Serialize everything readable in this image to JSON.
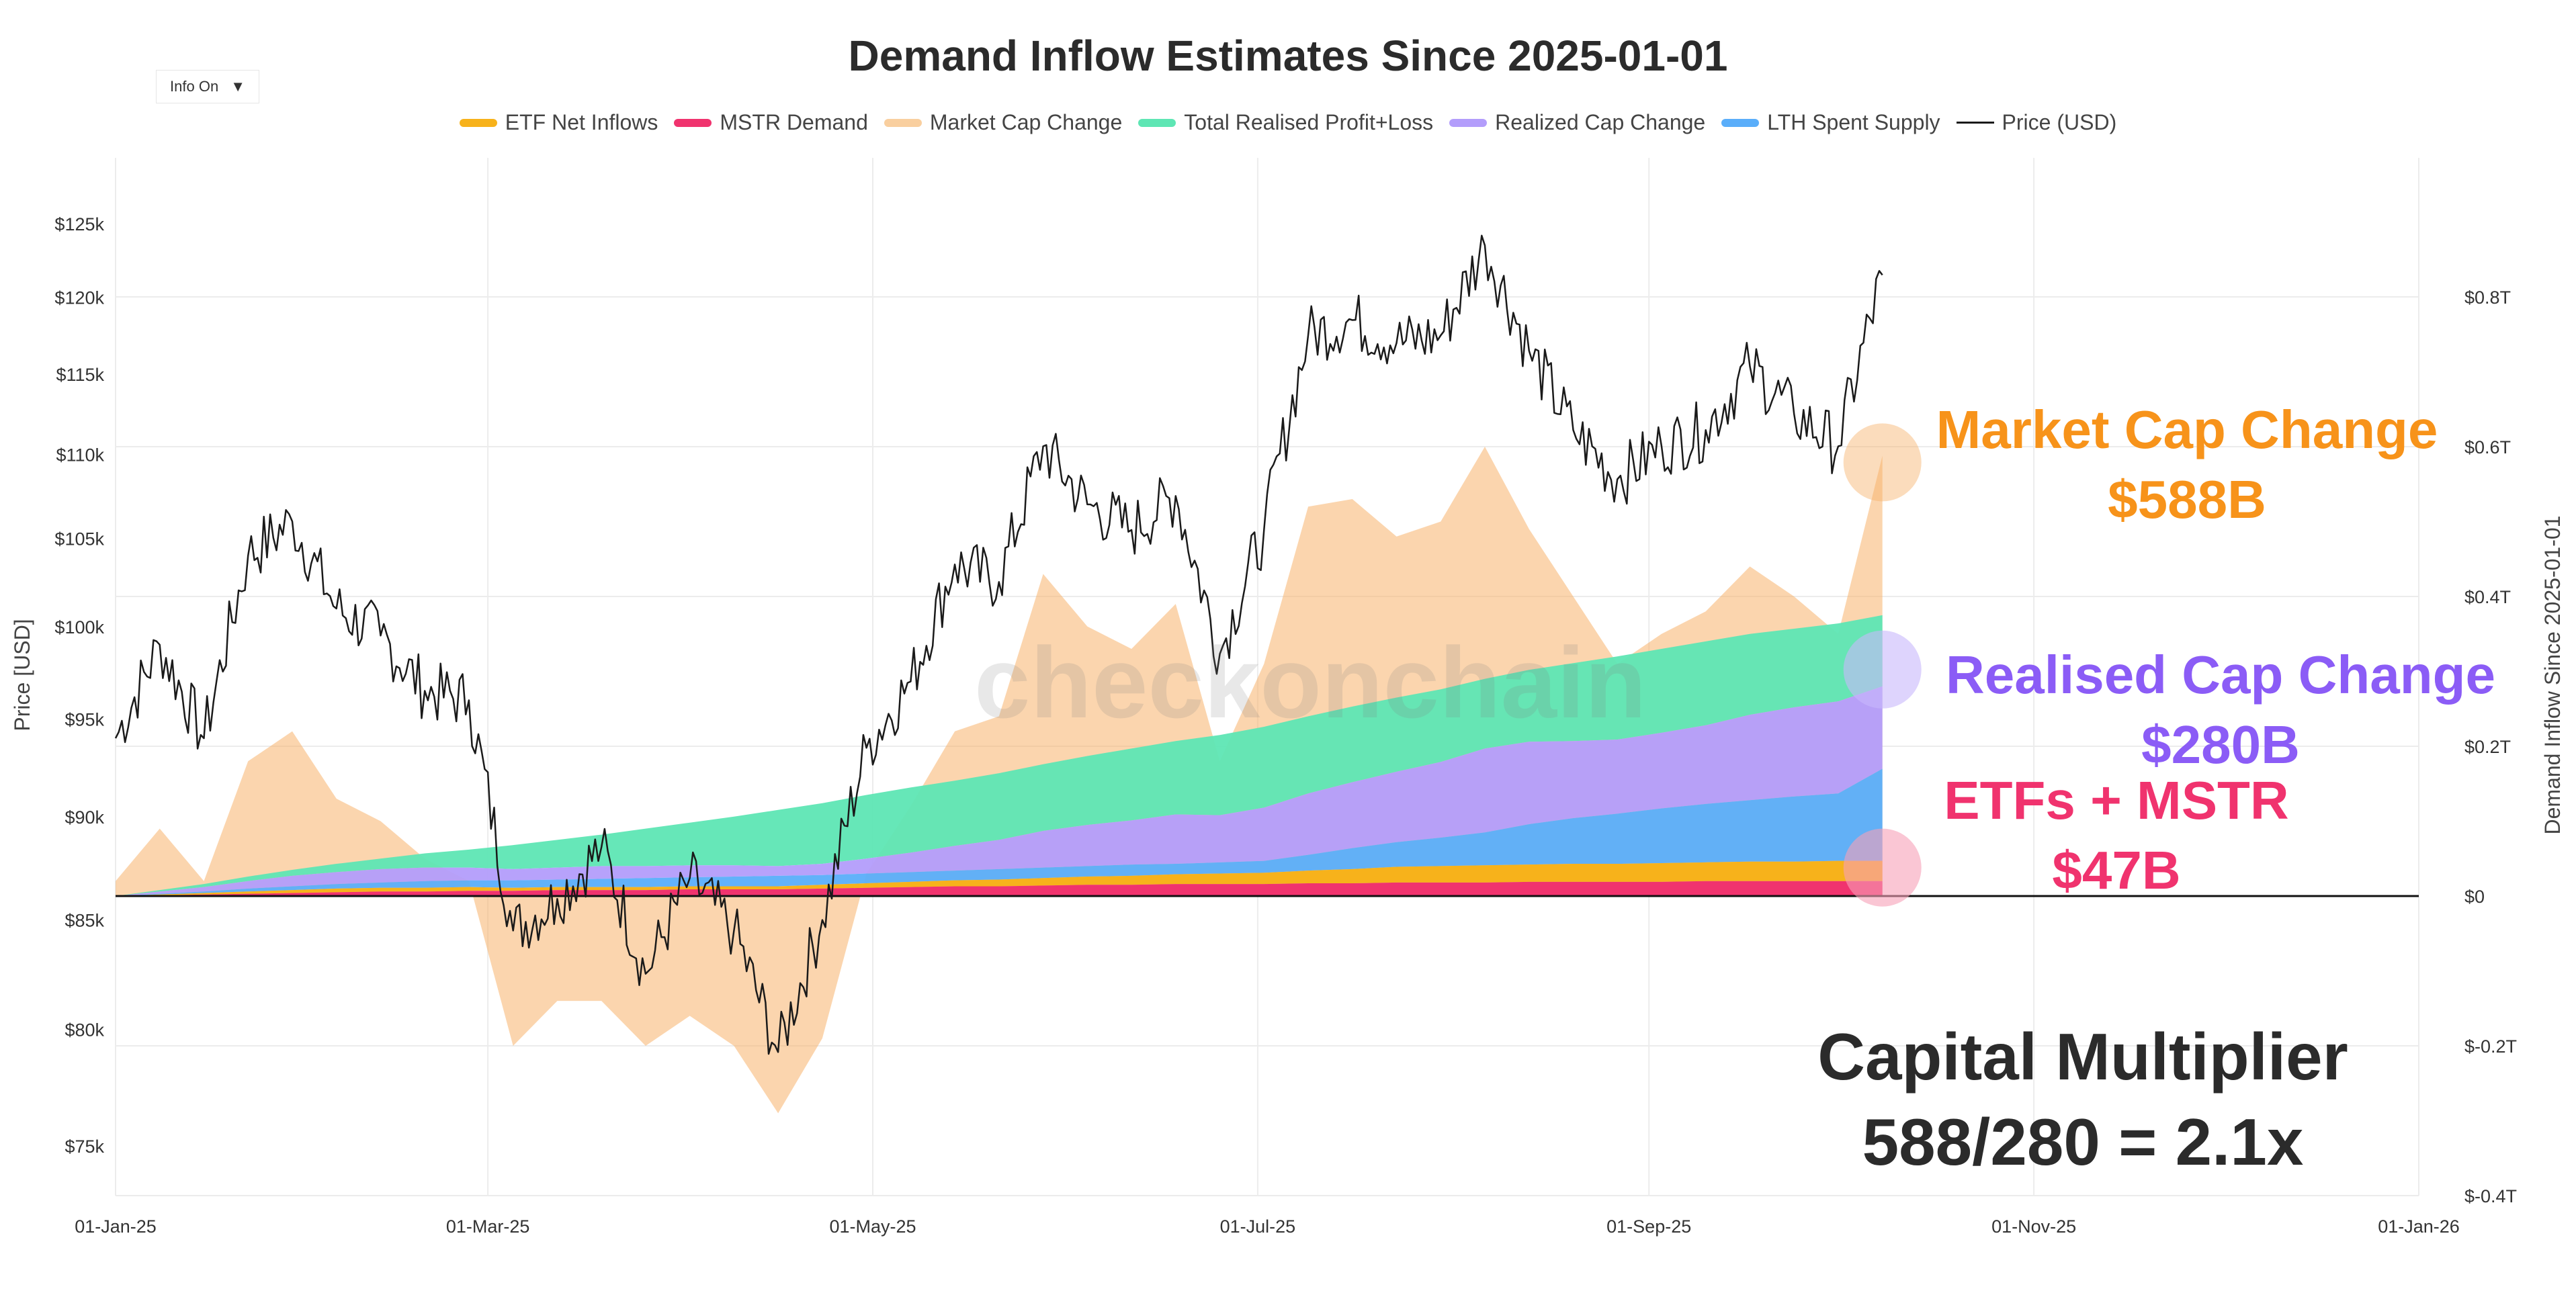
{
  "title": "Demand Inflow Estimates Since 2025-01-01",
  "info_toggle": {
    "label": "Info On",
    "arrow": "▼"
  },
  "watermark": "checkonchain",
  "legend": [
    {
      "label": "ETF Net Inflows",
      "color": "#f7b21b",
      "kind": "bar"
    },
    {
      "label": "MSTR Demand",
      "color": "#f0336e",
      "kind": "bar"
    },
    {
      "label": "Market Cap Change",
      "color": "#f9cf9f",
      "kind": "bar"
    },
    {
      "label": "Total Realised Profit+Loss",
      "color": "#5ee6b4",
      "kind": "bar"
    },
    {
      "label": "Realized Cap Change",
      "color": "#b39dfb",
      "kind": "bar"
    },
    {
      "label": "LTH Spent Supply",
      "color": "#5aaefa",
      "kind": "bar"
    },
    {
      "label": "Price (USD)",
      "color": "#1a1a1a",
      "kind": "line"
    }
  ],
  "annotations": {
    "market_cap": {
      "line1": "Market Cap Change",
      "line2": "$588B"
    },
    "realised_cap": {
      "line1": "Realised Cap Change",
      "line2": "$280B"
    },
    "etf_mstr": {
      "line1": "ETFs + MSTR",
      "line2": "$47B"
    },
    "multiplier": {
      "line1": "Capital Multiplier",
      "line2": "588/280 = 2.1x"
    }
  },
  "chart_data": {
    "type": "area",
    "title": "Demand Inflow Estimates Since 2025-01-01",
    "xlabel": "",
    "ylabel_left": "Price [USD]",
    "ylabel_right": "Demand Inflow Since 2025-01-01",
    "x_ticks": [
      "01-Jan-25",
      "01-Mar-25",
      "01-May-25",
      "01-Jul-25",
      "01-Sep-25",
      "01-Nov-25",
      "01-Jan-26"
    ],
    "x_tick_days": [
      0,
      59,
      120,
      181,
      243,
      304,
      365
    ],
    "x_range_days": [
      0,
      365
    ],
    "y_left_ticks": [
      "$75k",
      "$80k",
      "$85k",
      "$90k",
      "$95k",
      "$100k",
      "$105k",
      "$110k",
      "$115k",
      "$120k",
      "$125k"
    ],
    "y_left_tick_values": [
      75000,
      80000,
      85000,
      90000,
      95000,
      100000,
      105000,
      110000,
      115000,
      120000,
      125000
    ],
    "y_left_scale": "log",
    "y_right_ticks": [
      "$-0.4T",
      "$-0.2T",
      "$0",
      "$0.2T",
      "$0.4T",
      "$0.6T",
      "$0.8T"
    ],
    "y_right_tick_values": [
      -0.4,
      -0.2,
      0,
      0.2,
      0.4,
      0.6,
      0.8
    ],
    "y_right_unit": "USD trillions",
    "day_index": [
      0,
      7,
      14,
      21,
      28,
      35,
      42,
      49,
      56,
      63,
      70,
      77,
      84,
      91,
      98,
      105,
      112,
      119,
      126,
      133,
      140,
      147,
      154,
      161,
      168,
      175,
      182,
      189,
      196,
      203,
      210,
      217,
      224,
      231,
      238,
      245,
      252,
      259,
      266,
      273,
      280
    ],
    "series": [
      {
        "name": "Price (USD)",
        "axis": "left",
        "values": [
          94000,
          99000,
          94000,
          104000,
          106000,
          101000,
          99500,
          96500,
          96000,
          84500,
          86000,
          88500,
          82500,
          87000,
          84500,
          79000,
          85000,
          93500,
          97000,
          103500,
          102500,
          110500,
          107000,
          105500,
          107500,
          98500,
          105500,
          117500,
          118500,
          117000,
          117500,
          123500,
          116500,
          111500,
          108500,
          110500,
          111500,
          115500,
          112500,
          110500,
          121500
        ]
      },
      {
        "name": "Market Cap Change",
        "axis": "right",
        "values": [
          0.02,
          0.09,
          0.02,
          0.18,
          0.22,
          0.13,
          0.1,
          0.05,
          0.02,
          -0.2,
          -0.14,
          -0.14,
          -0.2,
          -0.16,
          -0.2,
          -0.29,
          -0.19,
          0.03,
          0.12,
          0.22,
          0.24,
          0.43,
          0.36,
          0.33,
          0.39,
          0.18,
          0.31,
          0.52,
          0.53,
          0.48,
          0.5,
          0.6,
          0.49,
          0.4,
          0.31,
          0.35,
          0.38,
          0.44,
          0.4,
          0.35,
          0.588
        ]
      },
      {
        "name": "Total Realised Profit+Loss",
        "axis": "right",
        "values": [
          0.0,
          0.008,
          0.016,
          0.026,
          0.035,
          0.043,
          0.05,
          0.057,
          0.062,
          0.068,
          0.075,
          0.082,
          0.09,
          0.098,
          0.106,
          0.115,
          0.124,
          0.135,
          0.145,
          0.154,
          0.164,
          0.176,
          0.187,
          0.197,
          0.207,
          0.215,
          0.226,
          0.24,
          0.253,
          0.265,
          0.276,
          0.29,
          0.302,
          0.311,
          0.32,
          0.33,
          0.34,
          0.35,
          0.357,
          0.364,
          0.375
        ]
      },
      {
        "name": "Realized Cap Change",
        "axis": "right",
        "values": [
          0.0,
          0.006,
          0.012,
          0.02,
          0.027,
          0.032,
          0.036,
          0.038,
          0.038,
          0.036,
          0.038,
          0.04,
          0.04,
          0.041,
          0.041,
          0.04,
          0.043,
          0.05,
          0.058,
          0.067,
          0.075,
          0.087,
          0.095,
          0.101,
          0.109,
          0.108,
          0.118,
          0.137,
          0.152,
          0.166,
          0.179,
          0.197,
          0.206,
          0.207,
          0.209,
          0.218,
          0.228,
          0.242,
          0.252,
          0.26,
          0.28
        ]
      },
      {
        "name": "LTH Spent Supply",
        "axis": "right",
        "values": [
          0.0,
          0.003,
          0.006,
          0.01,
          0.013,
          0.016,
          0.018,
          0.02,
          0.021,
          0.021,
          0.022,
          0.023,
          0.024,
          0.025,
          0.026,
          0.027,
          0.028,
          0.03,
          0.032,
          0.034,
          0.036,
          0.038,
          0.04,
          0.042,
          0.043,
          0.045,
          0.047,
          0.055,
          0.064,
          0.072,
          0.078,
          0.085,
          0.096,
          0.104,
          0.11,
          0.117,
          0.123,
          0.128,
          0.133,
          0.137,
          0.17
        ]
      },
      {
        "name": "ETF Net Inflows",
        "axis": "right",
        "values": [
          0.0,
          0.001,
          0.002,
          0.003,
          0.004,
          0.005,
          0.005,
          0.005,
          0.005,
          0.004,
          0.004,
          0.004,
          0.004,
          0.004,
          0.004,
          0.004,
          0.005,
          0.006,
          0.007,
          0.008,
          0.009,
          0.01,
          0.011,
          0.012,
          0.013,
          0.014,
          0.015,
          0.017,
          0.019,
          0.021,
          0.022,
          0.023,
          0.023,
          0.024,
          0.024,
          0.025,
          0.025,
          0.026,
          0.026,
          0.027,
          0.027
        ]
      },
      {
        "name": "MSTR Demand",
        "axis": "right",
        "values": [
          0.0,
          0.001,
          0.002,
          0.003,
          0.004,
          0.005,
          0.006,
          0.006,
          0.007,
          0.007,
          0.008,
          0.008,
          0.008,
          0.009,
          0.009,
          0.009,
          0.01,
          0.011,
          0.012,
          0.013,
          0.013,
          0.014,
          0.015,
          0.015,
          0.016,
          0.016,
          0.016,
          0.017,
          0.017,
          0.018,
          0.018,
          0.018,
          0.019,
          0.019,
          0.019,
          0.019,
          0.02,
          0.02,
          0.02,
          0.02,
          0.02
        ]
      }
    ]
  }
}
